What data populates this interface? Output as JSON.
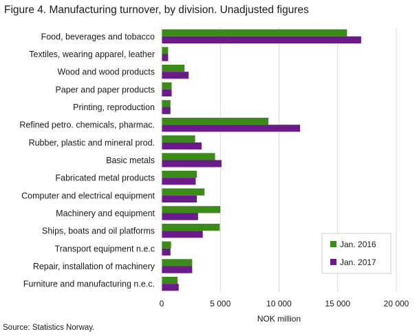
{
  "title": "Figure 4. Manufacturing turnover, by division. Unadjusted figures",
  "source": "Source: Statistics Norway.",
  "chart_data": {
    "type": "bar",
    "orientation": "horizontal",
    "title": "Figure 4. Manufacturing turnover, by division. Unadjusted figures",
    "xlabel": "NOK million",
    "ylabel": "",
    "xlim": [
      0,
      20000
    ],
    "ticks": [
      0,
      5000,
      10000,
      15000,
      20000
    ],
    "tick_labels": [
      "0",
      "5 000",
      "10 000",
      "15 000",
      "20 000"
    ],
    "grid": true,
    "legend_position": "bottom-right",
    "categories": [
      "Food, beverages and tobacco",
      "Textiles, wearing apparel, leather",
      "Wood and wood products",
      "Paper and paper products",
      "Printing, reproduction",
      "Refined petro. chemicals, pharmac.",
      "Rubber, plastic and mineral prod.",
      "Basic metals",
      "Fabricated metal products",
      "Computer and electrical equipment",
      "Machinery and equipment",
      "Ships, boats and oil platforms",
      "Transport equipment n.e.c",
      "Repair, installation of machinery",
      "Furniture and manufacturing n.e.c."
    ],
    "series": [
      {
        "name": "Jan. 2016",
        "color": "#3b8a1a",
        "values": [
          15800,
          550,
          1950,
          850,
          750,
          9100,
          2850,
          4550,
          3000,
          3650,
          5000,
          4950,
          800,
          2600,
          1350
        ]
      },
      {
        "name": "Jan. 2017",
        "color": "#6b1a8a",
        "values": [
          17000,
          550,
          2300,
          850,
          750,
          11800,
          3400,
          5100,
          2900,
          3000,
          3100,
          3500,
          750,
          2600,
          1450
        ]
      }
    ]
  }
}
